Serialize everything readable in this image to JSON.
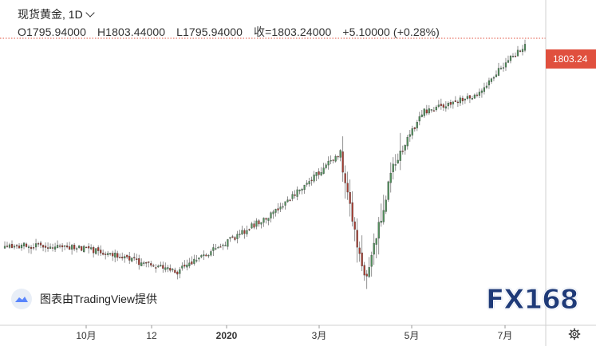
{
  "header": {
    "title": "现货黄金, 1D",
    "open": "O1795.94000",
    "high": "H1803.44000",
    "low": "L1795.94000",
    "close": "收=1803.24000",
    "change": "+5.10000 (+0.28%)"
  },
  "last_price_tag": "1803.24",
  "watermark_text": "图表由TradingView提供",
  "brand_logo_text": "FX168",
  "icons": {
    "tradingview": "tradingview-cloud-icon",
    "settings": "gear-icon",
    "title_menu": "chevron-down-icon"
  },
  "colors": {
    "up": "#4f8f5a",
    "down": "#a63a2e",
    "price_tag": "#e0503e",
    "last_price_line": "#e0503e",
    "brand": "#1e3a78"
  },
  "chart_data": {
    "type": "candlestick",
    "instrument": "现货黄金",
    "interval": "1D",
    "x_axis_labels": [
      "10月",
      "12",
      "2020",
      "3月",
      "5月",
      "7月"
    ],
    "last_price": 1803.24,
    "approx_close_path": [
      {
        "period": "early Sep 2019",
        "close": 1505
      },
      {
        "period": "10月",
        "close": 1500
      },
      {
        "period": "12",
        "close": 1465
      },
      {
        "period": "2020",
        "close": 1552
      },
      {
        "period": "late Feb 2020",
        "close": 1641
      },
      {
        "period": "3月 low",
        "close": 1455
      },
      {
        "period": "3月 rebound",
        "close": 1620
      },
      {
        "period": "5月",
        "close": 1702
      },
      {
        "period": "6月",
        "close": 1727
      },
      {
        "period": "7月",
        "close": 1803
      }
    ]
  }
}
